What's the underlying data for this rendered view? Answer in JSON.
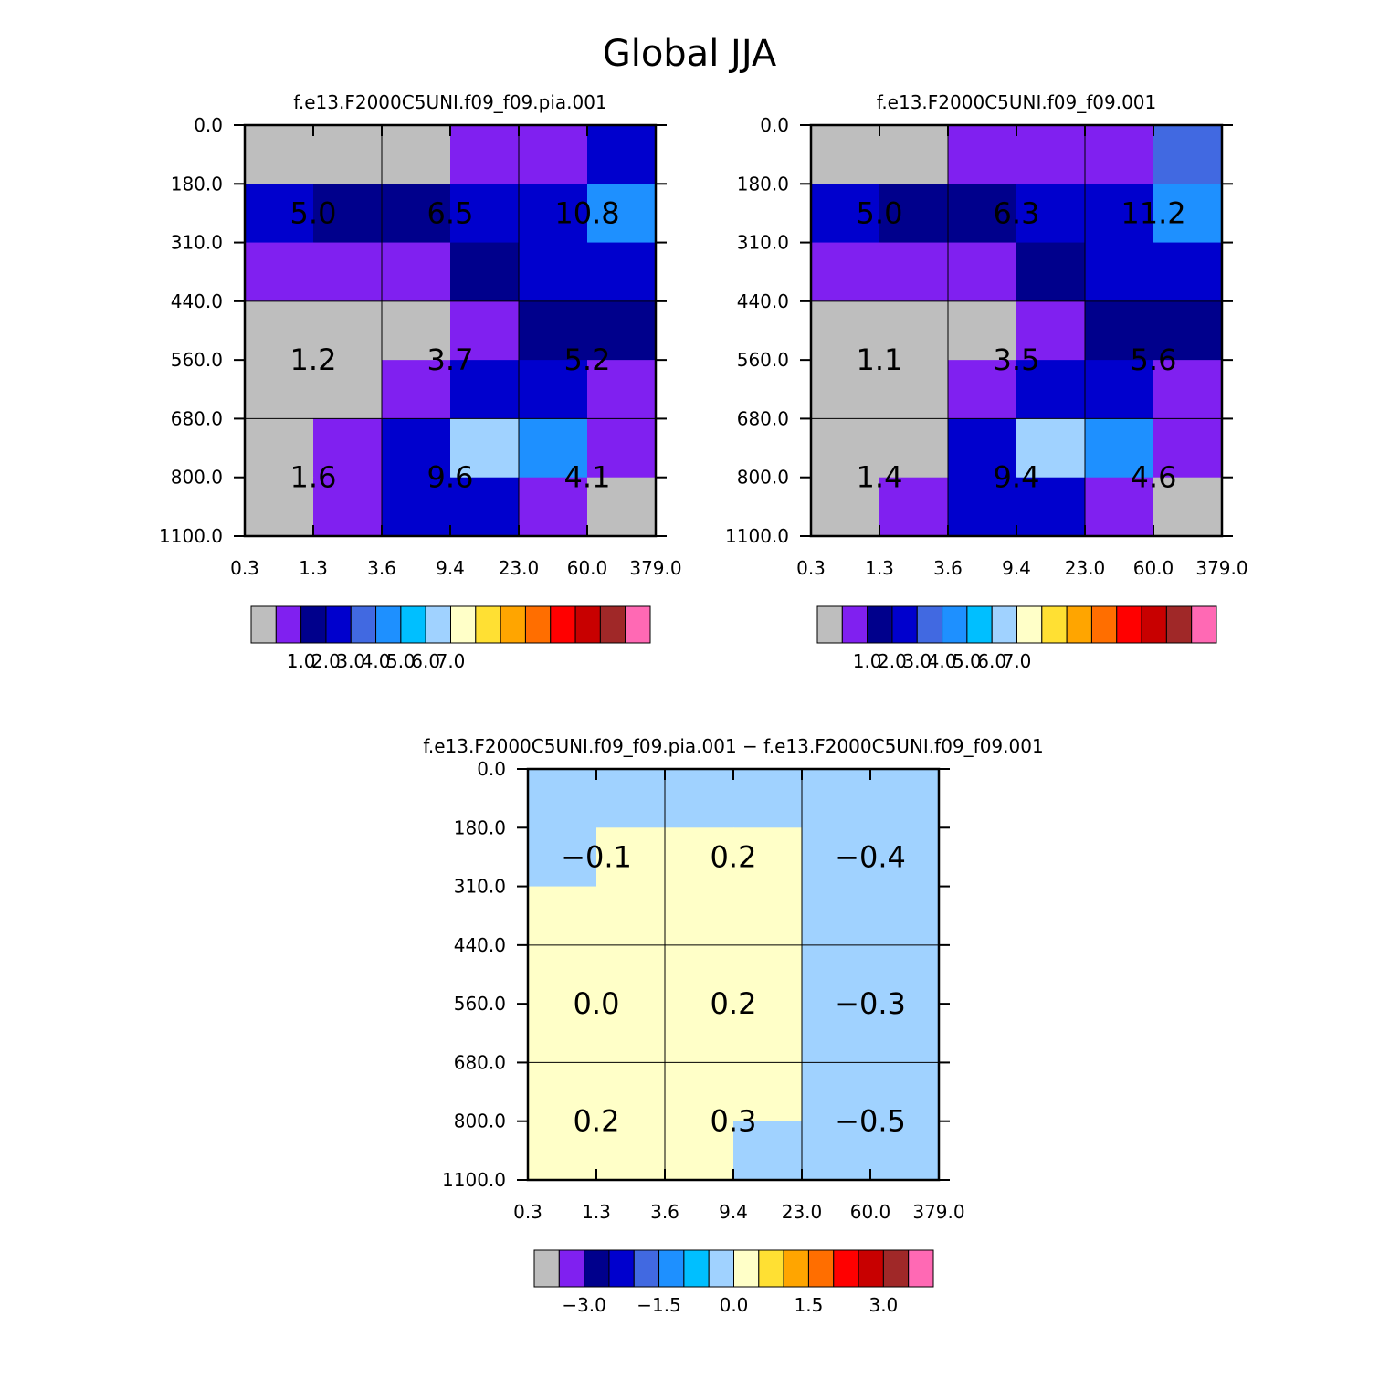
{
  "figure_title": "Global JJA",
  "chart_data": [
    {
      "type": "heatmap",
      "title": "f.e13.F2000C5UNI.f09_f09.pia.001",
      "x_ticks": [
        "0.3",
        "1.3",
        "3.6",
        "9.4",
        "23.0",
        "60.0",
        "379.0"
      ],
      "y_ticks": [
        "0.0",
        "180.0",
        "310.0",
        "440.0",
        "560.0",
        "680.0",
        "800.0",
        "1100.0"
      ],
      "cells": [
        [
          0,
          0,
          0,
          1,
          1,
          3
        ],
        [
          3,
          2,
          2,
          3,
          3,
          5
        ],
        [
          1,
          1,
          1,
          2,
          3,
          3
        ],
        [
          0,
          0,
          0,
          1,
          2,
          2
        ],
        [
          0,
          0,
          1,
          3,
          3,
          1
        ],
        [
          0,
          1,
          3,
          7,
          5,
          1
        ],
        [
          0,
          1,
          3,
          3,
          1,
          0
        ]
      ],
      "box_values": [
        [
          "5.0",
          "6.5",
          "10.8"
        ],
        [
          "1.2",
          "3.7",
          "5.2"
        ],
        [
          "1.6",
          "9.6",
          "4.1"
        ]
      ],
      "colorbar_labels": [
        "1.0",
        "2.0",
        "3.0",
        "4.0",
        "5.0",
        "6.0",
        "7.0"
      ]
    },
    {
      "type": "heatmap",
      "title": "f.e13.F2000C5UNI.f09_f09.001",
      "x_ticks": [
        "0.3",
        "1.3",
        "3.6",
        "9.4",
        "23.0",
        "60.0",
        "379.0"
      ],
      "y_ticks": [
        "0.0",
        "180.0",
        "310.0",
        "440.0",
        "560.0",
        "680.0",
        "800.0",
        "1100.0"
      ],
      "cells": [
        [
          0,
          0,
          1,
          1,
          1,
          4
        ],
        [
          3,
          2,
          2,
          3,
          3,
          5
        ],
        [
          1,
          1,
          1,
          2,
          3,
          3
        ],
        [
          0,
          0,
          0,
          1,
          2,
          2
        ],
        [
          0,
          0,
          1,
          3,
          3,
          1
        ],
        [
          0,
          0,
          3,
          7,
          5,
          1
        ],
        [
          0,
          1,
          3,
          3,
          1,
          0
        ]
      ],
      "box_values": [
        [
          "5.0",
          "6.3",
          "11.2"
        ],
        [
          "1.1",
          "3.5",
          "5.6"
        ],
        [
          "1.4",
          "9.4",
          "4.6"
        ]
      ],
      "colorbar_labels": [
        "1.0",
        "2.0",
        "3.0",
        "4.0",
        "5.0",
        "6.0",
        "7.0"
      ]
    },
    {
      "type": "heatmap",
      "title": "f.e13.F2000C5UNI.f09_f09.pia.001 - f.e13.F2000C5UNI.f09_f09.001",
      "x_ticks": [
        "0.3",
        "1.3",
        "3.6",
        "9.4",
        "23.0",
        "60.0",
        "379.0"
      ],
      "y_ticks": [
        "0.0",
        "180.0",
        "310.0",
        "440.0",
        "560.0",
        "680.0",
        "800.0",
        "1100.0"
      ],
      "cells": [
        [
          7,
          7,
          7,
          7,
          7,
          7
        ],
        [
          7,
          8,
          8,
          8,
          7,
          7
        ],
        [
          8,
          8,
          8,
          8,
          7,
          7
        ],
        [
          8,
          8,
          8,
          8,
          7,
          7
        ],
        [
          8,
          8,
          8,
          8,
          7,
          7
        ],
        [
          8,
          8,
          8,
          8,
          7,
          7
        ],
        [
          8,
          8,
          8,
          7,
          7,
          7
        ]
      ],
      "box_values": [
        [
          "-0.1",
          "0.2",
          "-0.4"
        ],
        [
          "0.0",
          "0.2",
          "-0.3"
        ],
        [
          "0.2",
          "0.3",
          "-0.5"
        ]
      ],
      "colorbar_labels": [
        "-3.0",
        "-1.5",
        "0.0",
        "1.5",
        "3.0"
      ]
    }
  ],
  "palette": [
    "#bebebe",
    "#8020f0",
    "#00008c",
    "#0000cd",
    "#4169e1",
    "#1e90ff",
    "#00bfff",
    "#a0d2ff",
    "#ffffc8",
    "#ffe033",
    "#ffa500",
    "#ff6e00",
    "#ff0000",
    "#c80000",
    "#a02828",
    "#ff69b4"
  ]
}
